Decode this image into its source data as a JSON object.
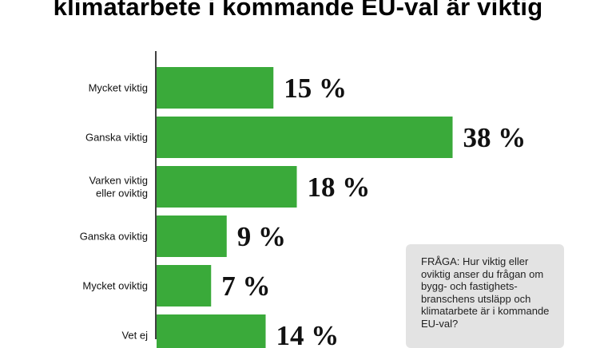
{
  "chart_data": {
    "type": "bar",
    "orientation": "horizontal",
    "title": "klimatarbete i kommande EU-val är viktig",
    "categories": [
      [
        "Mycket viktig"
      ],
      [
        "Ganska viktig"
      ],
      [
        "Varken viktig",
        "eller oviktig"
      ],
      [
        "Ganska oviktig"
      ],
      [
        "Mycket oviktig"
      ],
      [
        "Vet ej"
      ]
    ],
    "values": [
      15,
      38,
      18,
      9,
      7,
      14
    ],
    "value_labels": [
      "15 %",
      "38 %",
      "18 %",
      "9 %",
      "7 %",
      "14 %"
    ],
    "unit": "%",
    "bar_color": "#3aaa3a",
    "axis_color": "#000000",
    "grid": false,
    "legend": "none"
  },
  "question": {
    "text": "FRÅGA: Hur viktig eller oviktig anser du frågan om bygg- och fastighets- branschens utsläpp och klimatarbete är i kommande EU-val?"
  }
}
